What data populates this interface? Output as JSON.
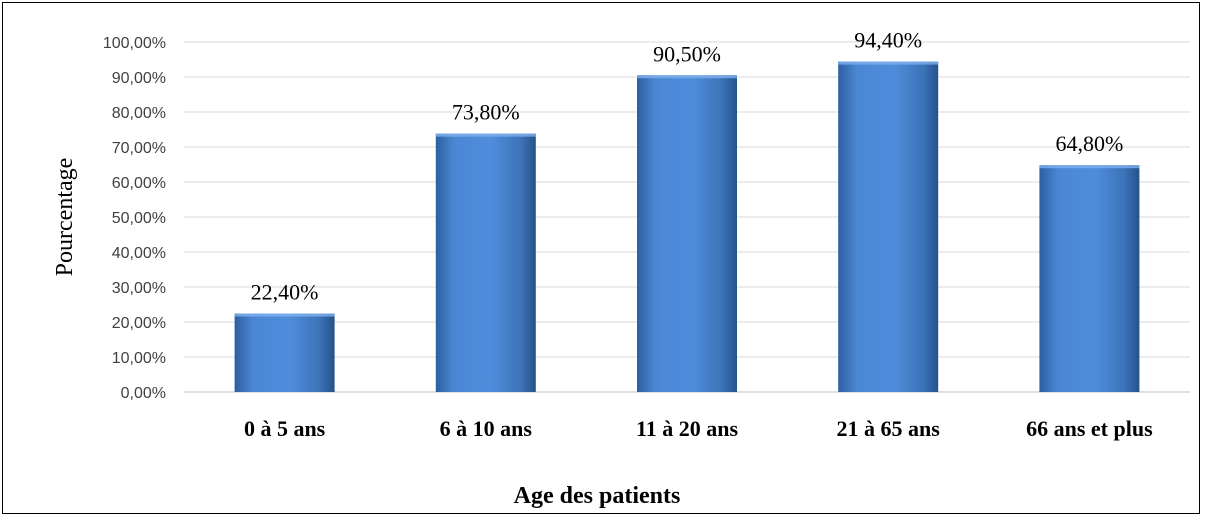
{
  "chart_data": {
    "type": "bar",
    "categories": [
      "0 à 5 ans",
      "6 à 10 ans",
      "11 à 20 ans",
      "21 à 65 ans",
      "66 ans et plus"
    ],
    "values": [
      22.4,
      73.8,
      90.5,
      94.4,
      64.8
    ],
    "data_labels": [
      "22,40%",
      "73,80%",
      "90,50%",
      "94,40%",
      "64,80%"
    ],
    "ytick_labels": [
      "0,00%",
      "10,00%",
      "20,00%",
      "30,00%",
      "40,00%",
      "50,00%",
      "60,00%",
      "70,00%",
      "80,00%",
      "90,00%",
      "100,00%"
    ],
    "ylim": [
      0,
      100
    ],
    "xlabel": "Age des patients",
    "ylabel": "Pourcentage",
    "grid": true,
    "legend": "none",
    "bar_color": "#4a86d4"
  }
}
